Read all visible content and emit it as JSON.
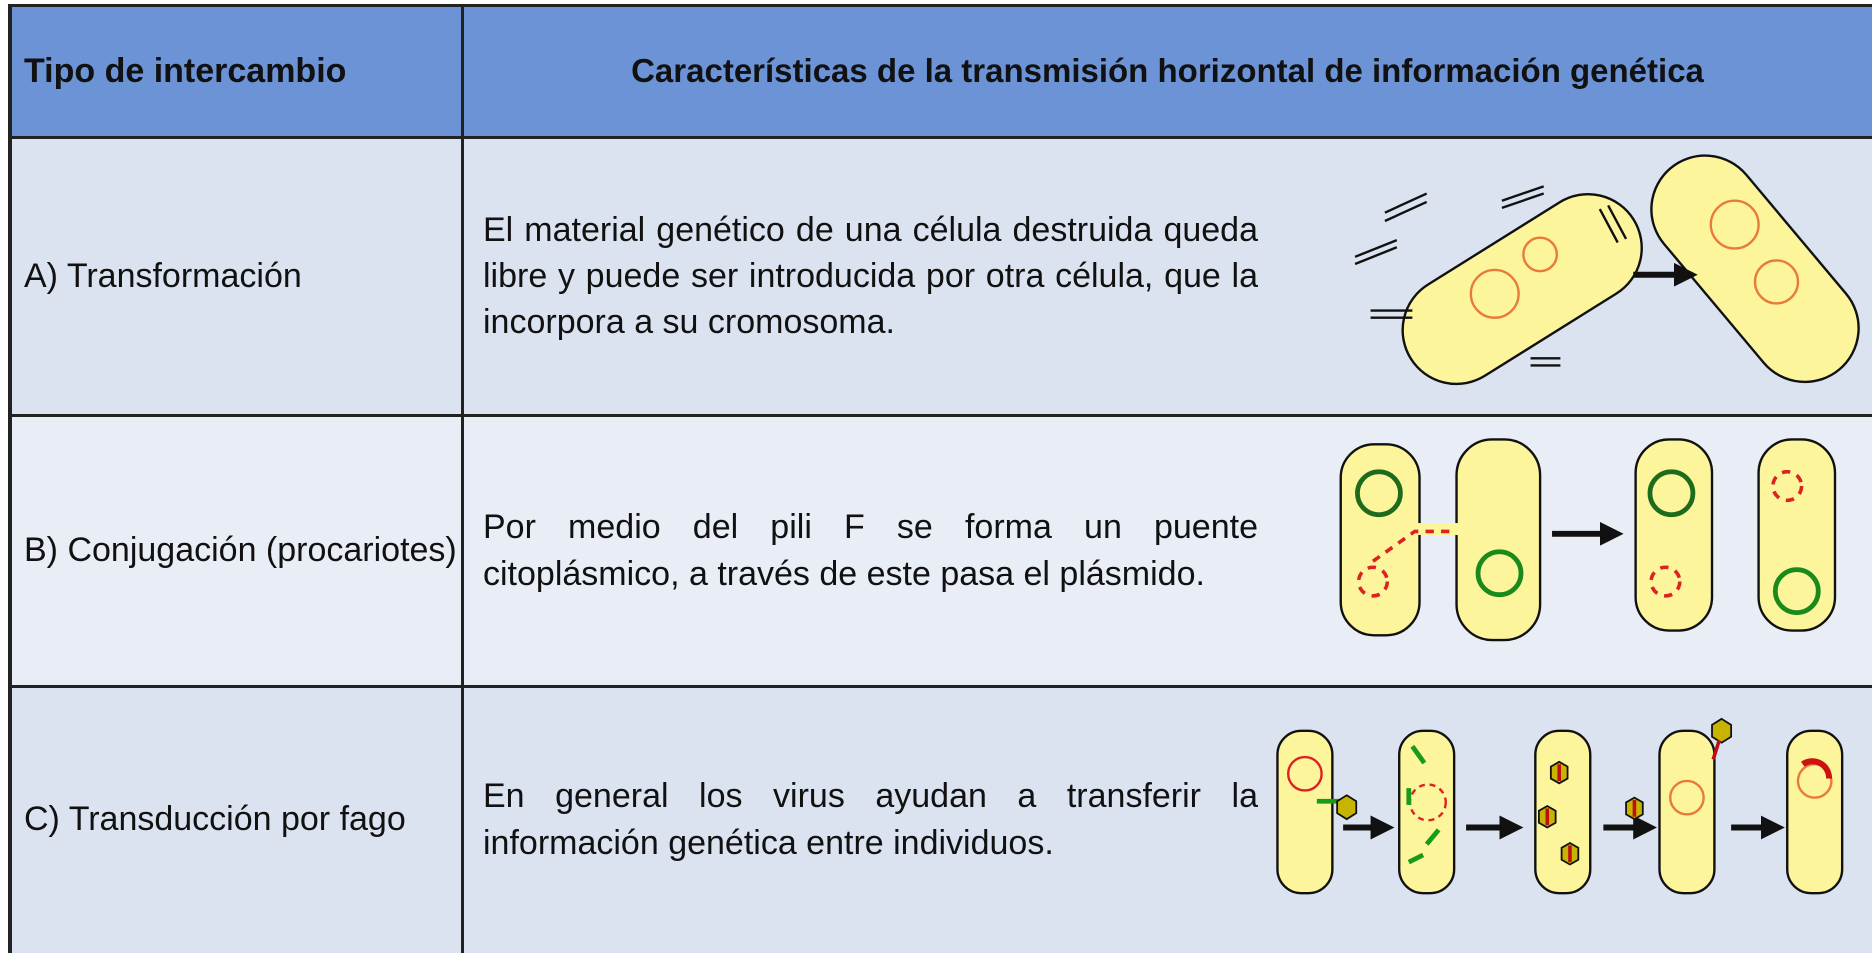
{
  "header": {
    "col1": "Tipo de intercambio",
    "col2": "Características de la transmisión horizontal de información genética"
  },
  "rows": [
    {
      "type": "A) Transformación",
      "description": "El material genético de una célula destruida queda libre y puede ser introducida por otra célula, que la incorpora a su cromosoma."
    },
    {
      "type": "B) Conjugación (procariotes)",
      "description": "Por medio del pili F se forma un puente citoplásmico, a través de este pasa el plásmido."
    },
    {
      "type": "C) Transducción por fago",
      "description": "En general los virus ayudan a transferir la información genética entre individuos."
    }
  ]
}
